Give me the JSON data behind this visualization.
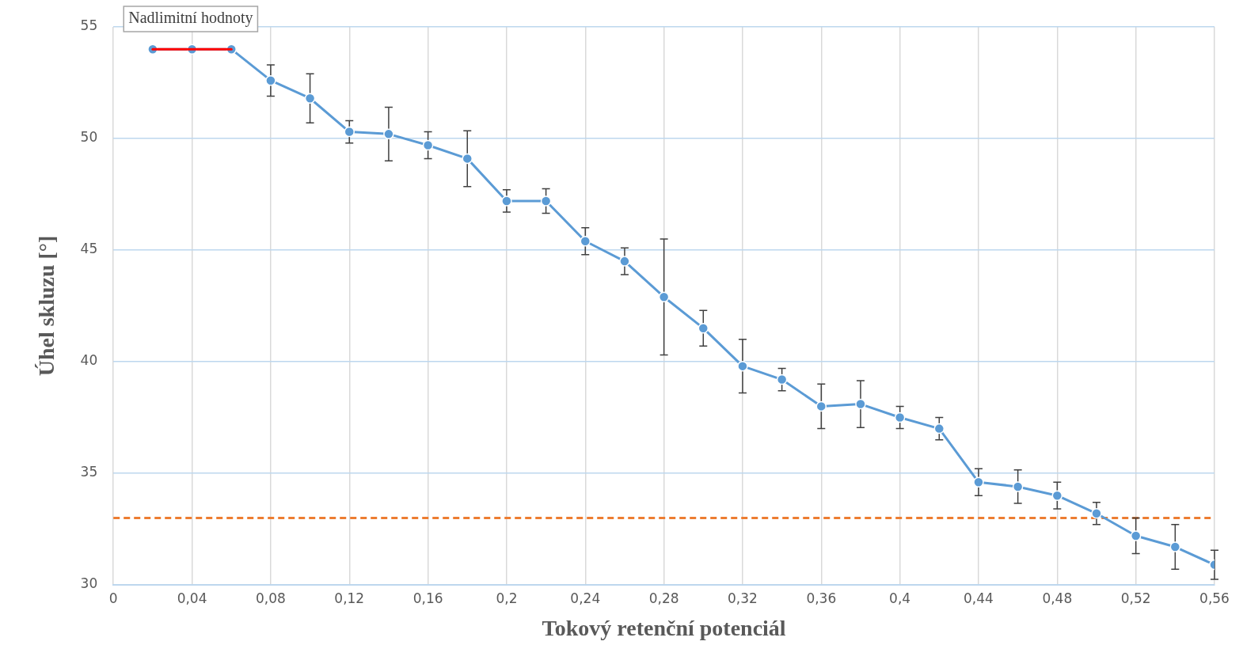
{
  "chart_data": {
    "type": "line",
    "xlabel": "Tokový retenční potenciál",
    "ylabel": "Úhel skluzu [°]",
    "annotations": [
      "Nadlimitní hodnoty"
    ],
    "series": [
      {
        "color": "#ff0000",
        "marker": "none",
        "x": [
          0.02,
          0.04,
          0.06
        ],
        "values": [
          54,
          54,
          54
        ]
      },
      {
        "color": "#5b9bd5",
        "marker": "circle",
        "x": [
          0.02,
          0.04,
          0.06,
          0.08,
          0.1,
          0.12,
          0.14,
          0.16,
          0.18,
          0.2,
          0.22,
          0.24,
          0.26,
          0.28,
          0.3,
          0.32,
          0.34,
          0.36,
          0.38,
          0.4,
          0.42,
          0.44,
          0.46,
          0.48,
          0.5,
          0.52,
          0.54,
          0.56
        ],
        "values": [
          54,
          54,
          54,
          52.6,
          51.8,
          50.3,
          50.2,
          49.7,
          49.1,
          47.2,
          47.2,
          45.4,
          44.5,
          42.9,
          41.5,
          39.8,
          39.2,
          38.0,
          38.1,
          37.5,
          37.0,
          34.6,
          34.4,
          34.0,
          33.2,
          32.2,
          31.7,
          30.9
        ],
        "errors": [
          null,
          null,
          null,
          0.7,
          1.1,
          0.5,
          1.2,
          0.6,
          1.25,
          0.5,
          0.55,
          0.6,
          0.6,
          2.6,
          0.8,
          1.2,
          0.5,
          1.0,
          1.05,
          0.5,
          0.5,
          0.6,
          0.75,
          0.6,
          0.5,
          0.8,
          1.0,
          0.65
        ]
      }
    ],
    "xlim": [
      0,
      0.56
    ],
    "xticks": [
      0,
      {
        "value": 0.04,
        "label": "0,04"
      },
      {
        "value": 0.08,
        "label": "0,08"
      },
      {
        "value": 0.12,
        "label": "0,12"
      },
      {
        "value": 0.16,
        "label": "0,16"
      },
      {
        "value": 0.2,
        "label": "0,2"
      },
      {
        "value": 0.24,
        "label": "0,24"
      },
      {
        "value": 0.28,
        "label": "0,28"
      },
      {
        "value": 0.32,
        "label": "0,32"
      },
      {
        "value": 0.36,
        "label": "0,36"
      },
      {
        "value": 0.4,
        "label": "0,4"
      },
      {
        "value": 0.44,
        "label": "0,44"
      },
      {
        "value": 0.48,
        "label": "0,48"
      },
      {
        "value": 0.52,
        "label": "0,52"
      },
      {
        "value": 0.56,
        "label": "0,56"
      }
    ],
    "ylim": [
      30,
      55
    ],
    "yticks": [
      30,
      35,
      40,
      45,
      50,
      55
    ],
    "ref_lines": [
      {
        "axis": "y",
        "value": 33,
        "color": "#ed7d31",
        "line_style": "dashed"
      }
    ],
    "grid": true,
    "legend": false
  }
}
